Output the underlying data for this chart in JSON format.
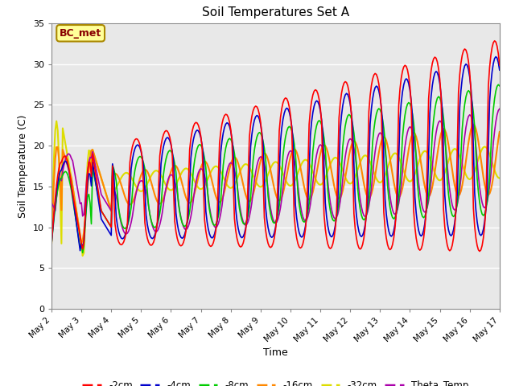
{
  "title": "Soil Temperatures Set A",
  "xlabel": "Time",
  "ylabel": "Soil Temperature (C)",
  "xlim": [
    0,
    360
  ],
  "ylim": [
    0,
    35
  ],
  "yticks": [
    0,
    5,
    10,
    15,
    20,
    25,
    30,
    35
  ],
  "xtick_labels": [
    "May 2",
    "May 3",
    "May 4",
    "May 5",
    "May 6",
    "May 7",
    "May 8",
    "May 9",
    "May 10",
    "May 11",
    "May 12",
    "May 13",
    "May 14",
    "May 15",
    "May 16",
    "May 17"
  ],
  "xtick_positions": [
    0,
    24,
    48,
    72,
    96,
    120,
    144,
    168,
    192,
    216,
    240,
    264,
    288,
    312,
    336,
    360
  ],
  "plot_bg_color": "#e8e8e8",
  "fig_bg_color": "#ffffff",
  "grid_color": "#ffffff",
  "series_colors": {
    "-2cm": "#ff0000",
    "-4cm": "#0000cc",
    "-8cm": "#00cc00",
    "-16cm": "#ff8800",
    "-32cm": "#dddd00",
    "Theta_Temp": "#aa00aa"
  },
  "legend_label": "BC_met",
  "annotation_bg": "#ffff99",
  "annotation_border": "#aa8800",
  "figsize": [
    6.4,
    4.8
  ],
  "dpi": 100
}
